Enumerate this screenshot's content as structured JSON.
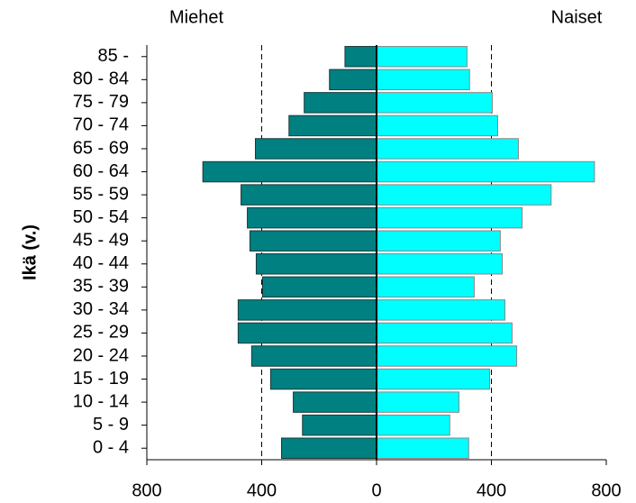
{
  "chart_data": {
    "type": "pyramid",
    "left_title": "Miehet",
    "right_title": "Naiset",
    "y_label": "Ikä (v.)",
    "categories": [
      "0 - 4",
      "5 - 9",
      "10 - 14",
      "15 - 19",
      "20 - 24",
      "25 - 29",
      "30 - 34",
      "35 - 39",
      "40 - 44",
      "45 - 49",
      "50 - 54",
      "55 - 59",
      "60 - 64",
      "65 - 69",
      "70 - 74",
      "75 - 79",
      "80 - 84",
      "85 -"
    ],
    "series": [
      {
        "name": "Miehet",
        "side": "left",
        "color": "#008080",
        "values": [
          331,
          258,
          290,
          369,
          435,
          482,
          482,
          397,
          419,
          441,
          450,
          472,
          605,
          422,
          305,
          252,
          164,
          110
        ]
      },
      {
        "name": "Naiset",
        "side": "right",
        "color": "#00ffff",
        "values": [
          321,
          255,
          287,
          394,
          488,
          472,
          447,
          340,
          438,
          431,
          507,
          608,
          759,
          494,
          422,
          403,
          324,
          315
        ]
      }
    ],
    "xlim": [
      -800,
      800
    ],
    "xticks": [
      {
        "value": -800,
        "label": "800"
      },
      {
        "value": -400,
        "label": "400"
      },
      0,
      400,
      800
    ],
    "grid": true
  }
}
